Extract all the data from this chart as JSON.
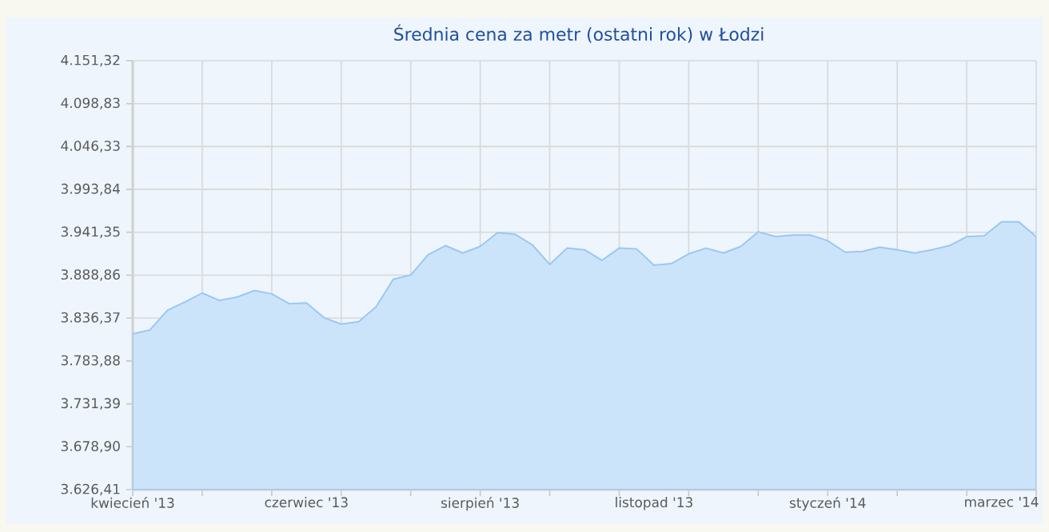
{
  "chart_data": {
    "type": "area",
    "title": "Średnia cena za metr (ostatni rok) w Łodzi",
    "categories": [
      "kwiecień '13",
      null,
      null,
      null,
      null,
      null,
      null,
      null,
      null,
      null,
      "czerwiec '13",
      null,
      null,
      null,
      null,
      null,
      null,
      null,
      null,
      null,
      "sierpień '13",
      null,
      null,
      null,
      null,
      null,
      null,
      null,
      null,
      null,
      "listopad '13",
      null,
      null,
      null,
      null,
      null,
      null,
      null,
      null,
      null,
      "styczeń '14",
      null,
      null,
      null,
      null,
      null,
      null,
      null,
      null,
      null,
      "marzec '14",
      null,
      null
    ],
    "series": [
      {
        "color": "#99c8f5",
        "values": [
          3817,
          3822,
          3846,
          3856,
          3867,
          3858,
          3862,
          3870,
          3866,
          3854,
          3855,
          3837,
          3829,
          3832,
          3850,
          3884,
          3889,
          3914,
          3925,
          3916,
          3924,
          3941,
          3939,
          3926,
          3902,
          3922,
          3920,
          3907,
          3922,
          3921,
          3901,
          3903,
          3915,
          3922,
          3916,
          3924,
          3942,
          3936,
          3938,
          3938,
          3931,
          3917,
          3918,
          3923,
          3920,
          3916,
          3920,
          3925,
          3936,
          3937,
          3954,
          3954,
          3936
        ]
      }
    ],
    "ylim": [
      3626.41,
      4151.32
    ],
    "yticks": [
      {
        "value": 3626.41,
        "label": "3.626,41"
      },
      {
        "value": 3678.9,
        "label": "3.678,90"
      },
      {
        "value": 3731.39,
        "label": "3.731,39"
      },
      {
        "value": 3783.88,
        "label": "3.783,88"
      },
      {
        "value": 3836.37,
        "label": "3.836,37"
      },
      {
        "value": 3888.86,
        "label": "3.888,86"
      },
      {
        "value": 3941.35,
        "label": "3.941,35"
      },
      {
        "value": 3993.84,
        "label": "3.993,84"
      },
      {
        "value": 4046.33,
        "label": "4.046,33"
      },
      {
        "value": 4098.83,
        "label": "4.098,83"
      },
      {
        "value": 4151.32,
        "label": "4.151,32"
      }
    ],
    "grid": true
  }
}
